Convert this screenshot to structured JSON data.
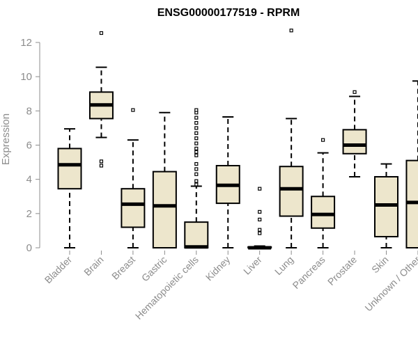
{
  "chart_data": {
    "type": "boxplot",
    "title": "ENSG00000177519 - RPRM",
    "xlabel": "",
    "ylabel": "Expression",
    "ylim": [
      0,
      12
    ],
    "yticks": [
      0,
      2,
      4,
      6,
      8,
      10,
      12
    ],
    "grid": false,
    "colors": {
      "box_fill": "#ede6cc",
      "box_stroke": "#000000",
      "median": "#000000",
      "axis": "#8c8c8c"
    },
    "categories": [
      "Bladder",
      "Brain",
      "Breast",
      "Gastric",
      "Hematopoietic cells",
      "Kidney",
      "Liver",
      "Lung",
      "Pancreas",
      "Prostate",
      "Skin",
      "Unknown / Other"
    ],
    "boxes": [
      {
        "name": "Bladder",
        "low": 0,
        "q1": 3.45,
        "median": 4.85,
        "q3": 5.8,
        "high": 6.95,
        "outliers": []
      },
      {
        "name": "Brain",
        "low": 6.45,
        "q1": 7.55,
        "median": 8.35,
        "q3": 9.1,
        "high": 10.55,
        "outliers": [
          4.8,
          5.05,
          12.55
        ]
      },
      {
        "name": "Breast",
        "low": 0,
        "q1": 1.2,
        "median": 2.55,
        "q3": 3.45,
        "high": 6.3,
        "outliers": [
          8.05
        ]
      },
      {
        "name": "Gastric",
        "low": 0,
        "q1": 0,
        "median": 2.45,
        "q3": 4.45,
        "high": 7.9,
        "outliers": []
      },
      {
        "name": "Hematopoietic cells",
        "low": 0,
        "q1": 0,
        "median": 0.05,
        "q3": 1.5,
        "high": 3.6,
        "outliers": [
          3.7,
          3.9,
          4.3,
          4.6,
          4.9,
          5.4,
          5.6,
          5.8,
          6.1,
          6.4,
          6.7,
          7.0,
          7.3,
          7.6,
          7.9,
          8.05
        ]
      },
      {
        "name": "Kidney",
        "low": 0,
        "q1": 2.6,
        "median": 3.65,
        "q3": 4.8,
        "high": 7.65,
        "outliers": []
      },
      {
        "name": "Liver",
        "low": 0,
        "q1": 0,
        "median": 0,
        "q3": 0.05,
        "high": 0.1,
        "outliers": [
          0.85,
          1.05,
          1.65,
          2.1,
          3.45
        ]
      },
      {
        "name": "Lung",
        "low": 0,
        "q1": 1.85,
        "median": 3.45,
        "q3": 4.75,
        "high": 7.55,
        "outliers": [
          12.7
        ]
      },
      {
        "name": "Pancreas",
        "low": 0,
        "q1": 1.15,
        "median": 1.95,
        "q3": 3.0,
        "high": 5.55,
        "outliers": [
          6.3
        ]
      },
      {
        "name": "Prostate",
        "low": 4.15,
        "q1": 5.5,
        "median": 6.0,
        "q3": 6.9,
        "high": 8.85,
        "outliers": [
          9.1
        ]
      },
      {
        "name": "Skin",
        "low": 0,
        "q1": 0.65,
        "median": 2.5,
        "q3": 4.15,
        "high": 4.9,
        "outliers": []
      },
      {
        "name": "Unknown / Other",
        "low": 0,
        "q1": 0,
        "median": 2.65,
        "q3": 5.1,
        "high": 9.75,
        "outliers": []
      }
    ]
  }
}
